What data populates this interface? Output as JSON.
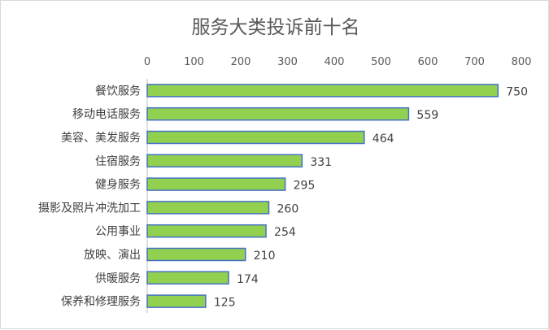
{
  "chart_data": {
    "type": "bar",
    "orientation": "horizontal",
    "title": "服务大类投诉前十名",
    "xlabel": "",
    "ylabel": "",
    "categories": [
      "餐饮服务",
      "移动电话服务",
      "美容、美发服务",
      "住宿服务",
      "健身服务",
      "摄影及照片冲洗加工",
      "公用事业",
      "放映、演出",
      "供暖服务",
      "保养和修理服务"
    ],
    "values": [
      750,
      559,
      464,
      331,
      295,
      260,
      254,
      210,
      174,
      125
    ],
    "xlim": [
      0,
      800
    ],
    "xticks": [
      0,
      100,
      200,
      300,
      400,
      500,
      600,
      700,
      800
    ],
    "axis_position": "top",
    "grid": false,
    "legend": "none",
    "bar_color": "#92d050",
    "bar_edge_color": "#4472c4"
  }
}
